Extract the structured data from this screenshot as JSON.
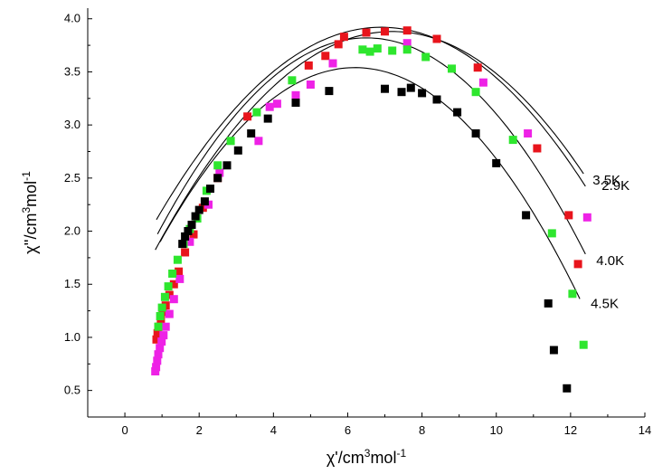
{
  "chart_data": {
    "type": "scatter",
    "xlabel": {
      "main": "χ'/cm",
      "sup": "3",
      "tail": "mol",
      "sup2": "-1"
    },
    "ylabel": {
      "main": "χ''/cm",
      "sup": "3",
      "tail": "mol",
      "sup2": "-1"
    },
    "xlim": [
      -1,
      14
    ],
    "ylim": [
      0.25,
      4.1
    ],
    "xticks": [
      0,
      2,
      4,
      6,
      8,
      10,
      12,
      14
    ],
    "yticks": [
      0.5,
      1.0,
      1.5,
      2.0,
      2.5,
      3.0,
      3.5,
      4.0
    ],
    "grid": false,
    "series": [
      {
        "name": "2.9K",
        "color": "#e8141c",
        "points": [
          [
            0.85,
            0.98
          ],
          [
            0.88,
            1.04
          ],
          [
            0.92,
            1.1
          ],
          [
            0.97,
            1.17
          ],
          [
            1.02,
            1.24
          ],
          [
            1.1,
            1.3
          ],
          [
            1.2,
            1.4
          ],
          [
            1.32,
            1.5
          ],
          [
            1.45,
            1.62
          ],
          [
            1.62,
            1.8
          ],
          [
            1.85,
            1.97
          ],
          [
            2.1,
            2.22
          ],
          [
            2.5,
            2.5
          ],
          [
            3.3,
            3.08
          ],
          [
            4.95,
            3.56
          ],
          [
            5.4,
            3.65
          ],
          [
            5.75,
            3.76
          ],
          [
            5.9,
            3.83
          ],
          [
            6.5,
            3.87
          ],
          [
            7.0,
            3.88
          ],
          [
            7.6,
            3.89
          ],
          [
            8.4,
            3.81
          ],
          [
            9.5,
            3.54
          ],
          [
            11.1,
            2.78
          ],
          [
            11.95,
            2.15
          ],
          [
            12.2,
            1.69
          ]
        ],
        "fit": {
          "cx": 6.9,
          "a": 3.92,
          "k": 0.0495,
          "x0": 0.85,
          "x1": 12.4
        }
      },
      {
        "name": "3.5K",
        "color": "#ee22e6",
        "points": [
          [
            0.82,
            0.68
          ],
          [
            0.84,
            0.72
          ],
          [
            0.87,
            0.78
          ],
          [
            0.9,
            0.84
          ],
          [
            0.94,
            0.9
          ],
          [
            0.99,
            0.96
          ],
          [
            1.04,
            1.02
          ],
          [
            1.1,
            1.1
          ],
          [
            1.2,
            1.22
          ],
          [
            1.32,
            1.36
          ],
          [
            1.48,
            1.55
          ],
          [
            1.75,
            1.9
          ],
          [
            2.25,
            2.25
          ],
          [
            2.55,
            2.55
          ],
          [
            3.6,
            2.85
          ],
          [
            3.9,
            3.17
          ],
          [
            4.1,
            3.2
          ],
          [
            4.6,
            3.28
          ],
          [
            5.0,
            3.38
          ],
          [
            5.6,
            3.58
          ],
          [
            7.6,
            3.77
          ],
          [
            9.65,
            3.4
          ],
          [
            10.85,
            2.92
          ],
          [
            12.45,
            2.13
          ]
        ],
        "fit": {
          "cx": 7.2,
          "a": 3.88,
          "k": 0.0505,
          "x0": 0.82,
          "x1": 12.35
        }
      },
      {
        "name": "4.0K",
        "color": "#2ee62e",
        "points": [
          [
            0.9,
            1.1
          ],
          [
            0.95,
            1.2
          ],
          [
            1.0,
            1.28
          ],
          [
            1.08,
            1.38
          ],
          [
            1.17,
            1.48
          ],
          [
            1.28,
            1.6
          ],
          [
            1.42,
            1.73
          ],
          [
            1.58,
            1.88
          ],
          [
            1.75,
            2.02
          ],
          [
            1.95,
            2.12
          ],
          [
            2.2,
            2.38
          ],
          [
            2.5,
            2.62
          ],
          [
            2.85,
            2.85
          ],
          [
            3.55,
            3.12
          ],
          [
            4.5,
            3.42
          ],
          [
            6.4,
            3.71
          ],
          [
            6.6,
            3.69
          ],
          [
            6.8,
            3.72
          ],
          [
            7.2,
            3.7
          ],
          [
            7.6,
            3.71
          ],
          [
            8.1,
            3.64
          ],
          [
            8.8,
            3.53
          ],
          [
            9.45,
            3.31
          ],
          [
            10.45,
            2.86
          ],
          [
            11.5,
            1.98
          ],
          [
            12.05,
            1.41
          ],
          [
            12.35,
            0.93
          ]
        ],
        "fit": {
          "cx": 6.5,
          "a": 3.82,
          "k": 0.0585,
          "x0": 0.88,
          "x1": 12.4
        }
      },
      {
        "name": "4.5K",
        "color": "#000000",
        "points": [
          [
            1.55,
            1.88
          ],
          [
            1.62,
            1.95
          ],
          [
            1.7,
            2.0
          ],
          [
            1.8,
            2.06
          ],
          [
            1.9,
            2.14
          ],
          [
            2.0,
            2.2
          ],
          [
            2.15,
            2.28
          ],
          [
            2.3,
            2.4
          ],
          [
            2.5,
            2.5
          ],
          [
            2.75,
            2.62
          ],
          [
            3.05,
            2.76
          ],
          [
            3.4,
            2.92
          ],
          [
            3.85,
            3.06
          ],
          [
            4.6,
            3.21
          ],
          [
            5.5,
            3.32
          ],
          [
            7.0,
            3.34
          ],
          [
            7.45,
            3.31
          ],
          [
            7.7,
            3.35
          ],
          [
            8.0,
            3.3
          ],
          [
            8.4,
            3.24
          ],
          [
            8.95,
            3.12
          ],
          [
            9.45,
            2.92
          ],
          [
            10.0,
            2.64
          ],
          [
            10.8,
            2.15
          ],
          [
            11.4,
            1.32
          ],
          [
            11.55,
            0.88
          ],
          [
            11.9,
            0.52
          ]
        ],
        "fit": {
          "cx": 6.2,
          "a": 3.54,
          "k": 0.0595,
          "x0": 0.95,
          "x1": 12.25
        }
      }
    ]
  }
}
